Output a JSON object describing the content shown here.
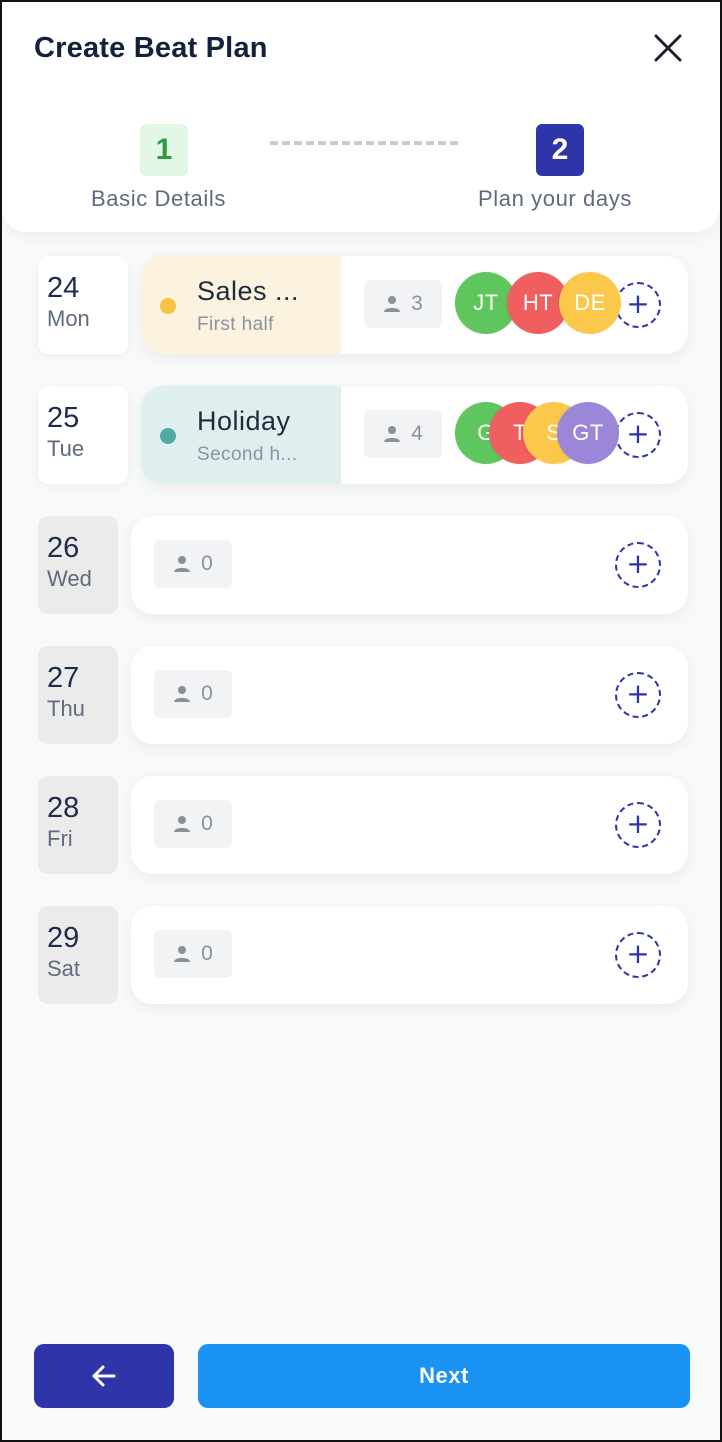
{
  "header": {
    "title": "Create Beat Plan",
    "close_icon": "close-icon"
  },
  "steps": [
    {
      "number": "1",
      "label": "Basic Details",
      "state": "completed"
    },
    {
      "number": "2",
      "label": "Plan your days",
      "state": "active"
    }
  ],
  "days": [
    {
      "date": "24",
      "day": "Mon",
      "event": {
        "title": "Sales ...",
        "subtitle": "First half",
        "dot_color": "#f7c443"
      },
      "count": "3",
      "avatars": [
        {
          "initials": "JT",
          "color": "#5fc65e"
        },
        {
          "initials": "HT",
          "color": "#ef5f5f"
        },
        {
          "initials": "DE",
          "color": "#fbc84c"
        }
      ]
    },
    {
      "date": "25",
      "day": "Tue",
      "event": {
        "title": "Holiday",
        "subtitle": "Second h...",
        "dot_color": "#52a9a4"
      },
      "count": "4",
      "avatars": [
        {
          "initials": "G",
          "color": "#5fc65e"
        },
        {
          "initials": "T",
          "color": "#ef5f5f"
        },
        {
          "initials": "S",
          "color": "#fbc84c"
        },
        {
          "initials": "GT",
          "color": "#9b86d8"
        }
      ]
    },
    {
      "date": "26",
      "day": "Wed",
      "count": "0"
    },
    {
      "date": "27",
      "day": "Thu",
      "count": "0"
    },
    {
      "date": "28",
      "day": "Fri",
      "count": "0"
    },
    {
      "date": "29",
      "day": "Sat",
      "count": "0"
    }
  ],
  "footer": {
    "back_icon": "arrow-left-icon",
    "next_label": "Next"
  }
}
